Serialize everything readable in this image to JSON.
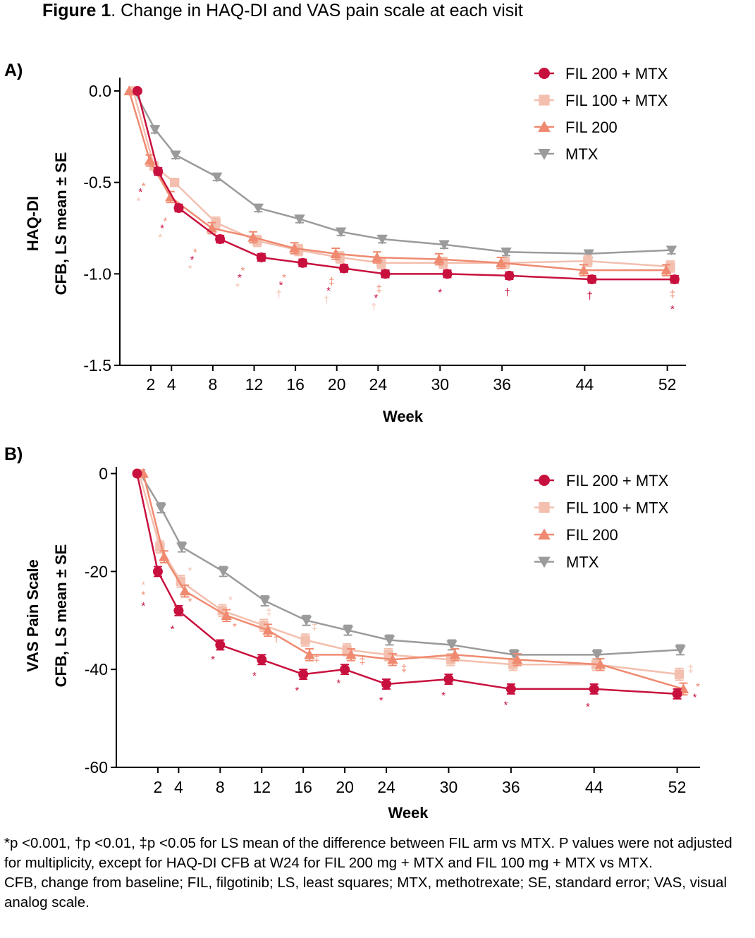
{
  "figure": {
    "title_bold": "Figure 1",
    "title_rest": ". Change in HAQ-DI and VAS pain scale at each visit"
  },
  "colors": {
    "FIL 200 + MTX": "#c8103e",
    "FIL 100 + MTX": "#f3bfae",
    "FIL 200": "#ef8a70",
    "MTX": "#9b9b9b",
    "axis": "#000000"
  },
  "chart_data": [
    {
      "type": "line",
      "panel_label": "A)",
      "xlabel": "Week",
      "ylabel_line1": "HAQ-DI",
      "ylabel_line2": "CFB, LS mean ± SE",
      "xlim": [
        -1,
        53.8
      ],
      "ylim": [
        -1.5,
        0.05
      ],
      "xticks": [
        2,
        4,
        8,
        12,
        16,
        20,
        24,
        30,
        36,
        44,
        52
      ],
      "yticks": [
        0.0,
        -0.5,
        -1.0,
        -1.5
      ],
      "ytick_labels": [
        "0.0",
        "-0.5",
        "-1.0",
        "-1.5"
      ],
      "x": [
        0,
        2,
        4,
        8,
        12,
        16,
        20,
        24,
        30,
        36,
        44,
        52
      ],
      "legend": "top-right",
      "series": [
        {
          "name": "FIL 200 + MTX",
          "marker": "circle",
          "offset": 0.7,
          "values": [
            0,
            -0.44,
            -0.64,
            -0.81,
            -0.91,
            -0.94,
            -0.97,
            -1.0,
            -1.0,
            -1.01,
            -1.03,
            -1.03
          ],
          "se": [
            0,
            0.02,
            0.02,
            0.02,
            0.02,
            0.02,
            0.02,
            0.02,
            0.02,
            0.02,
            0.02,
            0.02
          ]
        },
        {
          "name": "FIL 100 + MTX",
          "marker": "square",
          "offset": 0.3,
          "values": [
            0,
            -0.41,
            -0.5,
            -0.72,
            -0.82,
            -0.87,
            -0.91,
            -0.94,
            -0.94,
            -0.94,
            -0.93,
            -0.96
          ],
          "se": [
            0,
            0.02,
            0.02,
            0.03,
            0.03,
            0.03,
            0.03,
            0.03,
            0.03,
            0.03,
            0.03,
            0.03
          ]
        },
        {
          "name": "FIL 200",
          "marker": "triangle-up",
          "offset": -0.1,
          "values": [
            0,
            -0.38,
            -0.58,
            -0.75,
            -0.8,
            -0.86,
            -0.89,
            -0.91,
            -0.92,
            -0.94,
            -0.98,
            -0.98
          ],
          "se": [
            0,
            0.03,
            0.03,
            0.03,
            0.03,
            0.03,
            0.03,
            0.03,
            0.03,
            0.03,
            0.03,
            0.03
          ]
        },
        {
          "name": "MTX",
          "marker": "triangle-down",
          "offset": 0.4,
          "values": [
            0,
            -0.21,
            -0.35,
            -0.47,
            -0.64,
            -0.7,
            -0.77,
            -0.81,
            -0.84,
            -0.88,
            -0.89,
            -0.87
          ],
          "se": [
            0,
            0.02,
            0.02,
            0.02,
            0.02,
            0.02,
            0.02,
            0.02,
            0.02,
            0.02,
            0.02,
            0.02
          ]
        }
      ],
      "annotations": [
        {
          "text": "*",
          "x": 1.0,
          "y": -0.57,
          "series": "FIL 200 + MTX"
        },
        {
          "text": "*",
          "x": 1.3,
          "y": -0.54,
          "series": "FIL 200"
        },
        {
          "text": "*",
          "x": 0.8,
          "y": -0.62,
          "series": "FIL 100 + MTX"
        },
        {
          "text": "*",
          "x": 3.1,
          "y": -0.77,
          "series": "FIL 200 + MTX"
        },
        {
          "text": "*",
          "x": 3.4,
          "y": -0.73,
          "series": "FIL 200"
        },
        {
          "text": "*",
          "x": 2.9,
          "y": -0.82,
          "series": "FIL 100 + MTX"
        },
        {
          "text": "*",
          "x": 6.0,
          "y": -0.94,
          "series": "FIL 200 + MTX"
        },
        {
          "text": "*",
          "x": 6.3,
          "y": -0.9,
          "series": "FIL 200"
        },
        {
          "text": "*",
          "x": 5.8,
          "y": -0.99,
          "series": "FIL 100 + MTX"
        },
        {
          "text": "*",
          "x": 10.6,
          "y": -1.04,
          "series": "FIL 200 + MTX"
        },
        {
          "text": "*",
          "x": 10.9,
          "y": -1.0,
          "series": "FIL 200"
        },
        {
          "text": "*",
          "x": 10.4,
          "y": -1.09,
          "series": "FIL 100 + MTX"
        },
        {
          "text": "*",
          "x": 14.6,
          "y": -1.08,
          "series": "FIL 200 + MTX"
        },
        {
          "text": "*",
          "x": 14.9,
          "y": -1.04,
          "series": "FIL 200"
        },
        {
          "text": "†",
          "x": 14.4,
          "y": -1.13,
          "series": "FIL 100 + MTX"
        },
        {
          "text": "‡",
          "x": 19.5,
          "y": -1.06,
          "series": "FIL 200"
        },
        {
          "text": "*",
          "x": 19.2,
          "y": -1.11,
          "series": "FIL 200 + MTX"
        },
        {
          "text": "†",
          "x": 19.0,
          "y": -1.16,
          "series": "FIL 100 + MTX"
        },
        {
          "text": "‡",
          "x": 24.1,
          "y": -1.1,
          "series": "FIL 200"
        },
        {
          "text": "*",
          "x": 23.8,
          "y": -1.15,
          "series": "FIL 200 + MTX"
        },
        {
          "text": "†",
          "x": 23.6,
          "y": -1.2,
          "series": "FIL 100 + MTX"
        },
        {
          "text": "*",
          "x": 30.0,
          "y": -1.12,
          "series": "FIL 200 + MTX"
        },
        {
          "text": "†",
          "x": 36.5,
          "y": -1.12,
          "series": "FIL 200 + MTX"
        },
        {
          "text": "†",
          "x": 44.5,
          "y": -1.14,
          "series": "FIL 200 + MTX"
        },
        {
          "text": "‡",
          "x": 52.5,
          "y": -1.13,
          "series": "FIL 200"
        },
        {
          "text": "*",
          "x": 52.5,
          "y": -1.21,
          "series": "FIL 200 + MTX"
        }
      ]
    },
    {
      "type": "line",
      "panel_label": "B)",
      "xlabel": "Week",
      "ylabel_line1": "VAS Pain Scale",
      "ylabel_line2": "CFB, LS mean ± SE",
      "xlim": [
        -2,
        54.2
      ],
      "ylim": [
        -60,
        0.5
      ],
      "xticks": [
        2,
        4,
        8,
        12,
        16,
        20,
        24,
        30,
        36,
        44,
        52
      ],
      "yticks": [
        0,
        -20,
        -40,
        -60
      ],
      "ytick_labels": [
        "0",
        "-20",
        "-40",
        "-60"
      ],
      "x": [
        0,
        2,
        4,
        8,
        12,
        16,
        20,
        24,
        30,
        36,
        44,
        52
      ],
      "legend": "top-right",
      "series": [
        {
          "name": "FIL 200 + MTX",
          "marker": "circle",
          "offset": 0,
          "values": [
            0,
            -20,
            -28,
            -35,
            -38,
            -41,
            -40,
            -43,
            -42,
            -44,
            -44,
            -45
          ],
          "se": [
            0,
            1,
            1,
            1,
            1,
            1,
            1,
            1,
            1,
            1,
            1,
            1
          ]
        },
        {
          "name": "FIL 100 + MTX",
          "marker": "square",
          "offset": 0.2,
          "values": [
            0,
            -15,
            -22,
            -28,
            -31,
            -34,
            -36,
            -37,
            -38,
            -39,
            -39,
            -41
          ],
          "se": [
            0,
            1.2,
            1.2,
            1.2,
            1.2,
            1.2,
            1.2,
            1.2,
            1.2,
            1.2,
            1.2,
            1.2
          ]
        },
        {
          "name": "FIL 200",
          "marker": "triangle-up",
          "offset": 0.6,
          "values": [
            0,
            -17,
            -24,
            -29,
            -32,
            -37,
            -37,
            -38,
            -37,
            -38,
            -39,
            -44
          ],
          "se": [
            0,
            1.2,
            1.2,
            1.2,
            1.2,
            1.2,
            1.2,
            1.2,
            1.2,
            1.2,
            1.2,
            1.2
          ]
        },
        {
          "name": "MTX",
          "marker": "triangle-down",
          "offset": 0.3,
          "values": [
            0,
            -7,
            -15,
            -20,
            -26,
            -30,
            -32,
            -34,
            -35,
            -37,
            -37,
            -36
          ],
          "se": [
            0,
            1,
            1,
            1,
            1,
            1,
            1,
            1,
            1,
            1,
            1,
            1
          ]
        }
      ],
      "annotations": [
        {
          "text": "*",
          "x": 0.6,
          "y": -23.5,
          "series": "FIL 100 + MTX"
        },
        {
          "text": "*",
          "x": 0.6,
          "y": -25.5,
          "series": "FIL 200"
        },
        {
          "text": "*",
          "x": 0.6,
          "y": -27.7,
          "series": "FIL 200 + MTX"
        },
        {
          "text": "*",
          "x": 5.1,
          "y": -20.5,
          "series": "FIL 100 + MTX"
        },
        {
          "text": "*",
          "x": 5.1,
          "y": -26.8,
          "series": "FIL 200"
        },
        {
          "text": "*",
          "x": 3.4,
          "y": -32.5,
          "series": "FIL 200 + MTX"
        },
        {
          "text": "*",
          "x": 9.0,
          "y": -26.5,
          "series": "FIL 100 + MTX"
        },
        {
          "text": "*",
          "x": 9.4,
          "y": -32.0,
          "series": "FIL 200"
        },
        {
          "text": "*",
          "x": 7.3,
          "y": -38.7,
          "series": "FIL 200 + MTX"
        },
        {
          "text": "‡",
          "x": 12.7,
          "y": -29.0,
          "series": "FIL 100 + MTX"
        },
        {
          "text": "†",
          "x": 13.4,
          "y": -34.5,
          "series": "FIL 200"
        },
        {
          "text": "*",
          "x": 11.3,
          "y": -42.0,
          "series": "FIL 200 + MTX"
        },
        {
          "text": "‡",
          "x": 17.1,
          "y": -32.0,
          "series": "FIL 100 + MTX"
        },
        {
          "text": "‡",
          "x": 17.3,
          "y": -38.5,
          "series": "FIL 200"
        },
        {
          "text": "*",
          "x": 15.4,
          "y": -45.0,
          "series": "FIL 200 + MTX"
        },
        {
          "text": "‡",
          "x": 21.7,
          "y": -39.0,
          "series": "FIL 200"
        },
        {
          "text": "*",
          "x": 19.4,
          "y": -43.5,
          "series": "FIL 200 + MTX"
        },
        {
          "text": "‡",
          "x": 25.7,
          "y": -40.5,
          "series": "FIL 200"
        },
        {
          "text": "*",
          "x": 23.5,
          "y": -47.0,
          "series": "FIL 200 + MTX"
        },
        {
          "text": "*",
          "x": 29.5,
          "y": -46.0,
          "series": "FIL 200 + MTX"
        },
        {
          "text": "*",
          "x": 35.5,
          "y": -48.0,
          "series": "FIL 200 + MTX"
        },
        {
          "text": "*",
          "x": 43.4,
          "y": -48.3,
          "series": "FIL 200 + MTX"
        },
        {
          "text": "‡",
          "x": 53.3,
          "y": -40.6,
          "series": "FIL 100 + MTX"
        },
        {
          "text": "*",
          "x": 54.0,
          "y": -44.2,
          "series": "FIL 200"
        },
        {
          "text": "*",
          "x": 53.7,
          "y": -46.4,
          "series": "FIL 200 + MTX"
        }
      ]
    }
  ],
  "footnote": {
    "line1": "*p <0.001, †p <0.01, ‡p <0.05 for LS mean of the difference between FIL arm vs MTX. P values were not adjusted for multiplicity, except for HAQ-DI CFB at W24 for FIL 200 mg + MTX and FIL 100 mg + MTX vs MTX.",
    "line2": "CFB, change from baseline; FIL, filgotinib; LS, least squares; MTX, methotrexate; SE, standard error; VAS, visual analog scale."
  }
}
